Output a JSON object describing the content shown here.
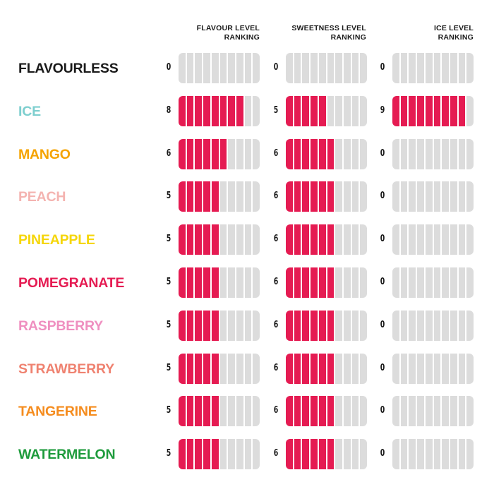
{
  "chart_data": {
    "type": "table",
    "title": "",
    "max_level": 10,
    "colors": {
      "filled": "#e51b52",
      "empty": "#dcdcdc",
      "text": "#1a1a1a"
    },
    "columns": [
      {
        "key": "flavour",
        "label_line1": "FLAVOUR LEVEL",
        "label_line2": "RANKING"
      },
      {
        "key": "sweetness",
        "label_line1": "SWEETNESS LEVEL",
        "label_line2": "RANKING"
      },
      {
        "key": "ice",
        "label_line1": "ICE LEVEL",
        "label_line2": "RANKING"
      }
    ],
    "rows": [
      {
        "name": "FLAVOURLESS",
        "color": "#1a1a1a",
        "flavour": 0,
        "sweetness": 0,
        "ice": 0
      },
      {
        "name": "ICE",
        "color": "#7ecfcf",
        "flavour": 8,
        "sweetness": 5,
        "ice": 9
      },
      {
        "name": "MANGO",
        "color": "#f5a300",
        "flavour": 6,
        "sweetness": 6,
        "ice": 0
      },
      {
        "name": "PEACH",
        "color": "#f4b3b0",
        "flavour": 5,
        "sweetness": 6,
        "ice": 0
      },
      {
        "name": "PINEAPPLE",
        "color": "#f5d60a",
        "flavour": 5,
        "sweetness": 6,
        "ice": 0
      },
      {
        "name": "POMEGRANATE",
        "color": "#e51b52",
        "flavour": 5,
        "sweetness": 6,
        "ice": 0
      },
      {
        "name": "RASPBERRY",
        "color": "#ef8fc0",
        "flavour": 5,
        "sweetness": 6,
        "ice": 0
      },
      {
        "name": "STRAWBERRY",
        "color": "#ef8270",
        "flavour": 5,
        "sweetness": 6,
        "ice": 0
      },
      {
        "name": "TANGERINE",
        "color": "#f58c1e",
        "flavour": 5,
        "sweetness": 6,
        "ice": 0
      },
      {
        "name": "WATERMELON",
        "color": "#1e9b3c",
        "flavour": 5,
        "sweetness": 6,
        "ice": 0
      }
    ]
  }
}
